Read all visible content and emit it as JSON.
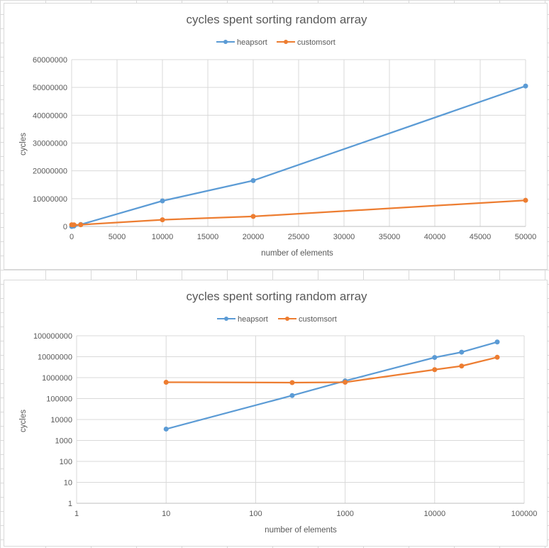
{
  "chart_data": [
    {
      "type": "line",
      "title": "cycles spent sorting random array",
      "xlabel": "number of elements",
      "ylabel": "cycles",
      "xscale": "linear",
      "yscale": "linear",
      "xlim": [
        0,
        50000
      ],
      "ylim": [
        0,
        60000000
      ],
      "x_ticks": [
        "0",
        "5000",
        "10000",
        "15000",
        "20000",
        "25000",
        "30000",
        "35000",
        "40000",
        "45000",
        "50000"
      ],
      "y_ticks": [
        "0",
        "10000000",
        "20000000",
        "30000000",
        "40000000",
        "50000000",
        "60000000"
      ],
      "grid": true,
      "legend": "top",
      "series": [
        {
          "name": "heapsort",
          "color": "#5b9bd5",
          "x": [
            10,
            256,
            1000,
            10000,
            20000,
            50000
          ],
          "y": [
            3500,
            140000,
            700000,
            9200000,
            16500000,
            50500000
          ]
        },
        {
          "name": "customsort",
          "color": "#ed7d31",
          "x": [
            10,
            256,
            1000,
            10000,
            20000,
            50000
          ],
          "y": [
            600000,
            580000,
            600000,
            2400000,
            3600000,
            9400000
          ]
        }
      ]
    },
    {
      "type": "line",
      "title": "cycles spent sorting random array",
      "xlabel": "number of elements",
      "ylabel": "cycles",
      "xscale": "log",
      "yscale": "log",
      "xlim": [
        1,
        100000
      ],
      "ylim": [
        1,
        100000000
      ],
      "x_ticks": [
        "1",
        "10",
        "100",
        "1000",
        "10000",
        "100000"
      ],
      "y_ticks": [
        "1",
        "10",
        "100",
        "1000",
        "10000",
        "100000",
        "1000000",
        "10000000",
        "100000000"
      ],
      "grid": true,
      "legend": "top",
      "series": [
        {
          "name": "heapsort",
          "color": "#5b9bd5",
          "x": [
            10,
            256,
            1000,
            10000,
            20000,
            50000
          ],
          "y": [
            3500,
            140000,
            700000,
            9200000,
            16500000,
            50500000
          ]
        },
        {
          "name": "customsort",
          "color": "#ed7d31",
          "x": [
            10,
            256,
            1000,
            10000,
            20000,
            50000
          ],
          "y": [
            600000,
            580000,
            600000,
            2400000,
            3600000,
            9400000
          ]
        }
      ]
    }
  ]
}
